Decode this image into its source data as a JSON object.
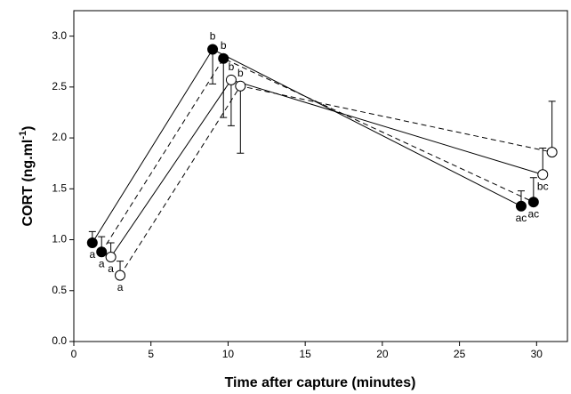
{
  "chart_data": {
    "type": "line",
    "xlabel": "Time after capture (minutes)",
    "ylabel": {
      "text": "CORT (ng.ml",
      "sup": "-1",
      "after": ")"
    },
    "xlim": [
      0,
      32
    ],
    "xticks": [
      0,
      5,
      10,
      15,
      20,
      25,
      30
    ],
    "ylim": [
      0,
      3.25
    ],
    "yticks": [
      {
        "value": 0,
        "label": "0.0"
      },
      0.5,
      {
        "value": 1,
        "label": "1.0"
      },
      1.5,
      {
        "value": 2,
        "label": "2.0"
      },
      2.5,
      {
        "value": 3,
        "label": "3.0"
      }
    ],
    "series": [
      {
        "color": "#000000",
        "marker_fill": "#000000",
        "dash": false,
        "x": [
          1.2,
          9.0,
          29.0
        ],
        "y": [
          0.97,
          2.87,
          1.33
        ],
        "errors": [
          0.11,
          0.34,
          0.15
        ],
        "error_side": [
          "up",
          "down",
          "up"
        ],
        "point_labels": [
          "a",
          "b",
          "ac"
        ]
      },
      {
        "color": "#000000",
        "marker_fill": "#000000",
        "dash": true,
        "x": [
          1.8,
          9.7,
          29.8
        ],
        "y": [
          0.88,
          2.78,
          1.37
        ],
        "errors": [
          0.15,
          0.58,
          0.24
        ],
        "error_side": [
          "up",
          "down",
          "up"
        ],
        "point_labels": [
          "a",
          "b",
          "ac"
        ]
      },
      {
        "color": "#000000",
        "marker_fill": "#ffffff",
        "dash": false,
        "x": [
          2.4,
          10.2,
          30.4
        ],
        "y": [
          0.83,
          2.57,
          1.64
        ],
        "errors": [
          0.14,
          0.45,
          0.26
        ],
        "error_side": [
          "up",
          "down",
          "up"
        ],
        "point_labels": [
          "a",
          "b",
          "bc"
        ]
      },
      {
        "color": "#000000",
        "marker_fill": "#ffffff",
        "dash": true,
        "x": [
          3.0,
          10.8,
          31.0
        ],
        "y": [
          0.65,
          2.51,
          1.86
        ],
        "errors": [
          0.14,
          0.66,
          0.5
        ],
        "error_side": [
          "up",
          "down",
          "up"
        ],
        "point_labels": [
          "a",
          "b",
          null
        ]
      }
    ]
  }
}
